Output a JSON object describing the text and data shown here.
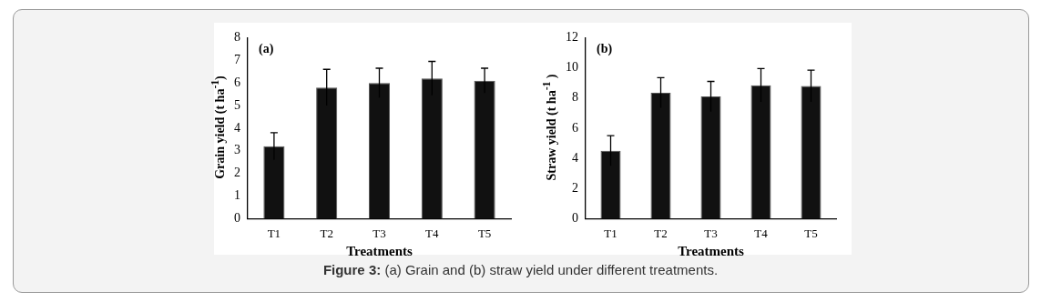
{
  "chart_data": [
    {
      "type": "bar",
      "categories": [
        "T1",
        "T2",
        "T3",
        "T4",
        "T5"
      ],
      "values": [
        3.2,
        5.8,
        6.0,
        6.2,
        6.1
      ],
      "errors": [
        0.6,
        0.8,
        0.65,
        0.75,
        0.55
      ],
      "color": "#111111",
      "xlabel": "Treatments",
      "ylabel": "Grain yield  (t ha$^{-1}$)",
      "ylim": [
        0,
        8
      ],
      "yticks": [
        0,
        1,
        2,
        3,
        4,
        5,
        6,
        7,
        8
      ],
      "grid": false,
      "legend": false,
      "annotations": [
        "(a)",
        "Figure 3: (a) Grain and (b) straw yield under different treatments."
      ]
    },
    {
      "type": "bar",
      "categories": [
        "T1",
        "T2",
        "T3",
        "T4",
        "T5"
      ],
      "values": [
        4.5,
        8.35,
        8.1,
        8.85,
        8.8
      ],
      "errors": [
        1.0,
        1.0,
        1.0,
        1.1,
        1.05
      ],
      "color": "#111111",
      "xlabel": "Treatments",
      "ylabel": "Straw  yield (t ha$^{-1}$ )",
      "ylim": [
        0,
        12
      ],
      "yticks": [
        0,
        2,
        4,
        6,
        8,
        10,
        12
      ],
      "grid": false,
      "legend": false,
      "annotations": [
        "(b)"
      ]
    }
  ]
}
